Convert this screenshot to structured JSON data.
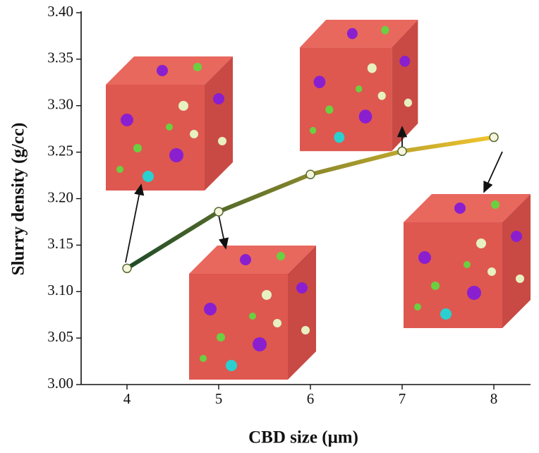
{
  "chart_data": {
    "type": "line",
    "x_label": "CBD size (μm)",
    "y_label": "Slurry density (g/cc)",
    "series": [
      {
        "x": [
          4,
          5,
          6,
          7,
          8
        ],
        "values": [
          3.125,
          3.186,
          3.226,
          3.251,
          3.266
        ],
        "gradient": [
          "#1d4a28",
          "#f4c52e"
        ]
      }
    ],
    "xlim": [
      3.5,
      8.4
    ],
    "xticks": [
      4,
      5,
      6,
      7,
      8
    ],
    "ylim": [
      3.0,
      3.4
    ],
    "yticks": [
      {
        "value": 3.0,
        "label": "3.00"
      },
      3.05,
      {
        "value": 3.1,
        "label": "3.10"
      },
      3.15,
      {
        "value": 3.2,
        "label": "3.20"
      },
      3.25,
      {
        "value": 3.3,
        "label": "3.30"
      },
      3.35,
      {
        "value": 3.4,
        "label": "3.40"
      }
    ]
  }
}
